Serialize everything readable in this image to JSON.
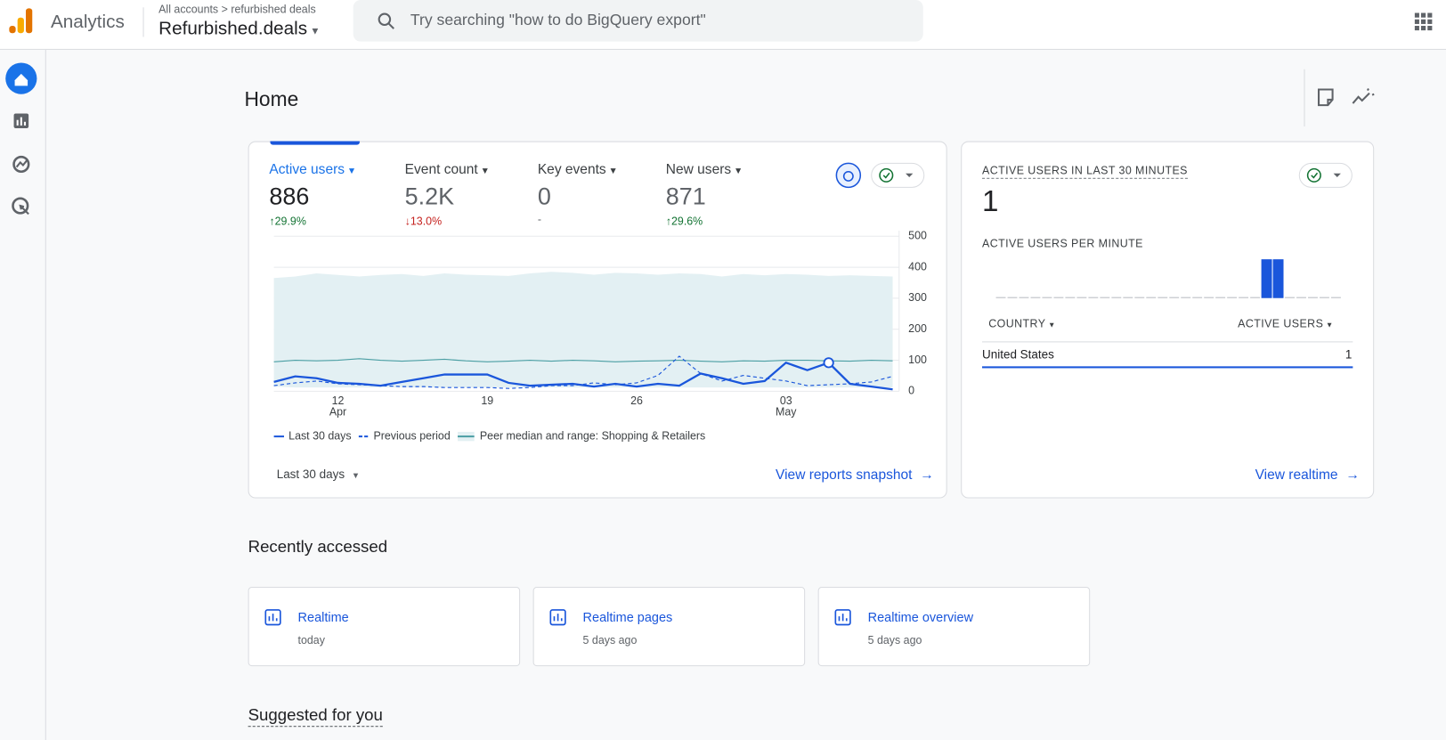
{
  "header": {
    "product": "Analytics",
    "breadcrumb": [
      "All accounts",
      "refurbished deals"
    ],
    "property": "Refurbished.deals",
    "search_placeholder": "Try searching \"how to do BigQuery export\""
  },
  "home": {
    "title": "Home",
    "metrics": [
      {
        "label": "Active users",
        "value": "886",
        "change": "29.9%"
      },
      {
        "label": "Event count",
        "value": "5.2K",
        "change": "13.0%"
      },
      {
        "label": "Key events",
        "value": "0",
        "change": "-"
      },
      {
        "label": "New users",
        "value": "871",
        "change": "29.6%"
      }
    ],
    "date_range": "Last 30 days",
    "snapshot_link": "View reports snapshot",
    "realtime": {
      "title": "ACTIVE USERS IN LAST 30 MINUTES",
      "value": "1",
      "table": {
        "headers": [
          "COUNTRY",
          "ACTIVE USERS"
        ],
        "rows": [
          [
            "United States",
            "1"
          ]
        ]
      },
      "link": "View realtime"
    },
    "recent": {
      "title": "Recently accessed",
      "items": [
        {
          "name": "Realtime",
          "when": "today"
        },
        {
          "name": "Realtime pages",
          "when": "5 days ago"
        },
        {
          "name": "Realtime overview",
          "when": "5 days ago"
        }
      ]
    },
    "suggested": "Suggested for you"
  },
  "chart_data": [
    {
      "type": "line",
      "categories": [
        null,
        null,
        null,
        "12",
        null,
        null,
        null,
        null,
        null,
        null,
        "19",
        null,
        null,
        null,
        null,
        null,
        null,
        "26",
        null,
        null,
        null,
        null,
        null,
        null,
        "03",
        null,
        null,
        null,
        null,
        null
      ],
      "category_sublabels": [
        null,
        null,
        null,
        "Apr",
        null,
        null,
        null,
        null,
        null,
        null,
        null,
        null,
        null,
        null,
        null,
        null,
        null,
        null,
        null,
        null,
        null,
        null,
        null,
        null,
        "May",
        null,
        null,
        null,
        null,
        null
      ],
      "series": [
        {
          "name": "Last 30 days",
          "color": "#1a56db",
          "style": "solid",
          "values": [
            30,
            48,
            42,
            27,
            24,
            18,
            30,
            42,
            54,
            54,
            54,
            27,
            18,
            21,
            24,
            15,
            24,
            15,
            24,
            18,
            57,
            42,
            24,
            33,
            92,
            68,
            92,
            24,
            15,
            6
          ]
        },
        {
          "name": "Previous period",
          "color": "#1a56db",
          "style": "dashed",
          "values": [
            18,
            27,
            33,
            24,
            21,
            18,
            15,
            15,
            12,
            12,
            12,
            9,
            12,
            18,
            18,
            27,
            21,
            27,
            51,
            113,
            57,
            33,
            51,
            42,
            33,
            18,
            21,
            24,
            30,
            48
          ]
        },
        {
          "name": "Peer median and range: Shopping & Retailers",
          "color": "#4a9ea3",
          "style": "solid",
          "values": [
            95,
            100,
            98,
            100,
            105,
            100,
            97,
            100,
            103,
            98,
            95,
            97,
            100,
            97,
            100,
            98,
            95,
            97,
            98,
            100,
            97,
            95,
            98,
            97,
            100,
            100,
            98,
            97,
            100,
            98
          ],
          "range_upper": [
            365,
            370,
            380,
            375,
            370,
            375,
            378,
            372,
            380,
            376,
            374,
            372,
            380,
            385,
            382,
            376,
            382,
            380,
            376,
            380,
            378,
            370,
            378,
            374,
            378,
            376,
            372,
            374,
            372,
            370
          ],
          "range_lower": [
            15,
            12,
            12,
            12,
            12,
            12,
            12,
            12,
            12,
            12,
            12,
            12,
            12,
            12,
            12,
            12,
            12,
            12,
            12,
            12,
            12,
            12,
            12,
            12,
            12,
            12,
            12,
            12,
            12,
            12
          ],
          "range_color": "#e3f0f3"
        }
      ],
      "highlight_index": 26,
      "ylim": [
        0,
        500
      ],
      "yticks": [
        0,
        100,
        200,
        300,
        400,
        500
      ],
      "grid": true
    },
    {
      "type": "bar",
      "title": "ACTIVE USERS PER MINUTE",
      "color": "#1a56db",
      "values": [
        0,
        0,
        0,
        0,
        0,
        0,
        0,
        0,
        0,
        0,
        0,
        0,
        0,
        0,
        0,
        0,
        0,
        0,
        0,
        0,
        0,
        0,
        0,
        1,
        1,
        0,
        0,
        0,
        0,
        0
      ],
      "ylim": [
        0,
        1
      ]
    }
  ]
}
